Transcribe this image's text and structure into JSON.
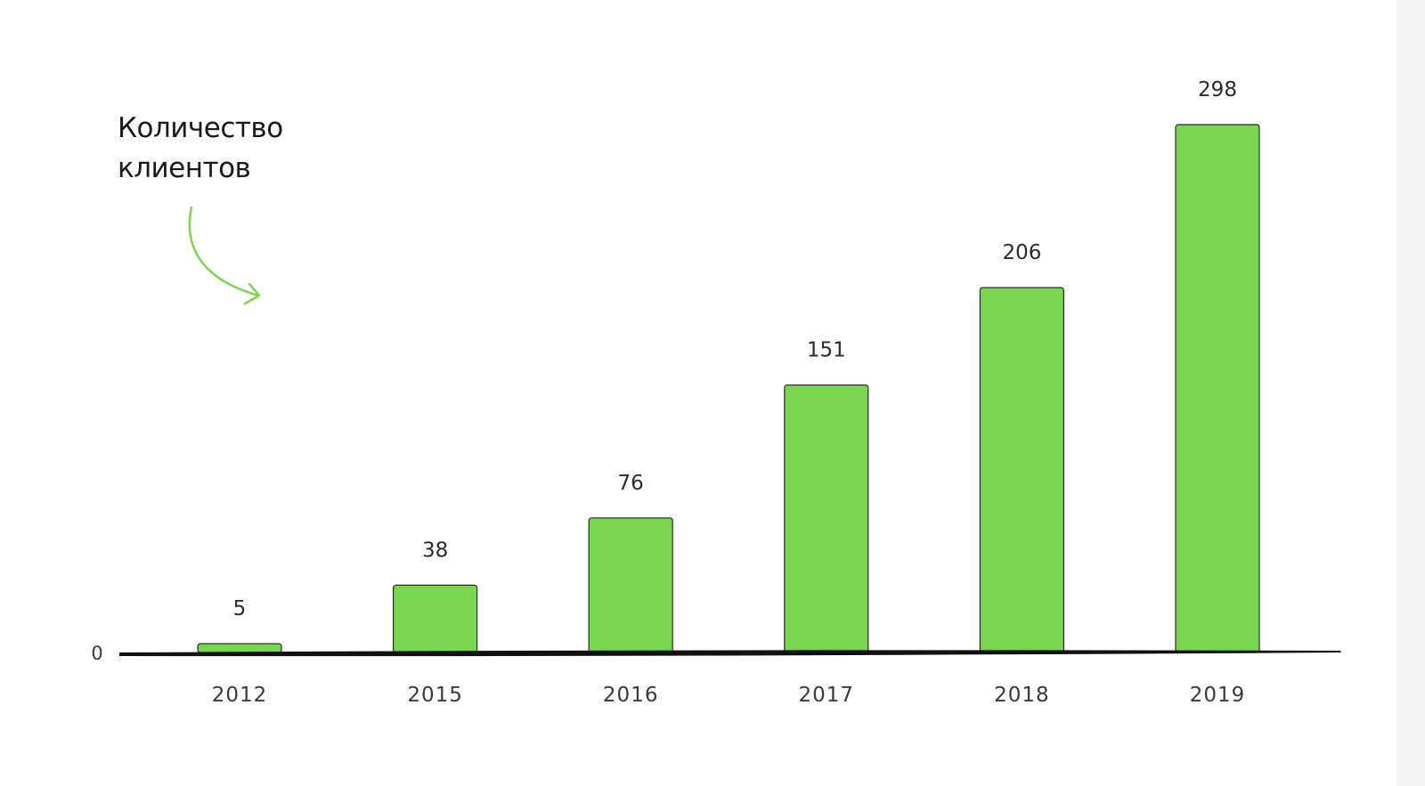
{
  "annotation": {
    "line1": "Количество",
    "line2": "клиентов"
  },
  "colors": {
    "bar": "#7ad651",
    "arrow": "#7ad651",
    "axis": "#111111"
  },
  "chart_data": {
    "type": "bar",
    "categories": [
      "2012",
      "2015",
      "2016",
      "2017",
      "2018",
      "2019"
    ],
    "values": [
      5,
      38,
      76,
      151,
      206,
      298
    ],
    "title": "",
    "xlabel": "",
    "ylabel": "Количество клиентов",
    "ylim": [
      0,
      298
    ],
    "y_tick_labels": [
      "0"
    ],
    "grid": false,
    "legend": "none"
  }
}
